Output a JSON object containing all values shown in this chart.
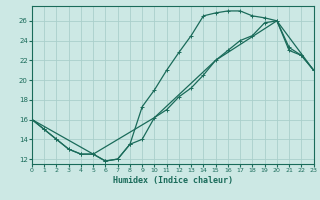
{
  "xlabel": "Humidex (Indice chaleur)",
  "background_color": "#cce8e4",
  "grid_color": "#aacfcb",
  "line_color": "#1a6b5a",
  "xlim": [
    0,
    23
  ],
  "ylim": [
    11.5,
    27.5
  ],
  "yticks": [
    12,
    14,
    16,
    18,
    20,
    22,
    24,
    26
  ],
  "xticks": [
    0,
    1,
    2,
    3,
    4,
    5,
    6,
    7,
    8,
    9,
    10,
    11,
    12,
    13,
    14,
    15,
    16,
    17,
    18,
    19,
    20,
    21,
    22,
    23
  ],
  "curve1_x": [
    0,
    1,
    2,
    3,
    4,
    5,
    6,
    7,
    8,
    9,
    10,
    11,
    12,
    13,
    14,
    15,
    16,
    17,
    18,
    19,
    20,
    21,
    22,
    23
  ],
  "curve1_y": [
    16.0,
    15.0,
    14.0,
    13.0,
    12.5,
    12.5,
    11.8,
    12.0,
    13.5,
    17.3,
    19.0,
    21.0,
    22.8,
    24.5,
    26.5,
    26.8,
    27.0,
    27.0,
    26.5,
    26.3,
    26.0,
    23.0,
    22.5,
    21.0
  ],
  "curve2_x": [
    0,
    1,
    2,
    3,
    4,
    5,
    6,
    7,
    8,
    9,
    10,
    11,
    12,
    13,
    14,
    15,
    16,
    17,
    18,
    19,
    20,
    21,
    22,
    23
  ],
  "curve2_y": [
    16.0,
    15.0,
    14.0,
    13.0,
    12.5,
    12.5,
    11.8,
    12.0,
    13.5,
    14.0,
    16.2,
    17.0,
    18.3,
    19.2,
    20.5,
    22.0,
    23.0,
    24.0,
    24.5,
    25.8,
    26.0,
    23.3,
    22.5,
    21.0
  ],
  "curve3_x": [
    0,
    5,
    10,
    15,
    20,
    23
  ],
  "curve3_y": [
    16.0,
    12.5,
    16.2,
    22.0,
    26.0,
    21.0
  ]
}
